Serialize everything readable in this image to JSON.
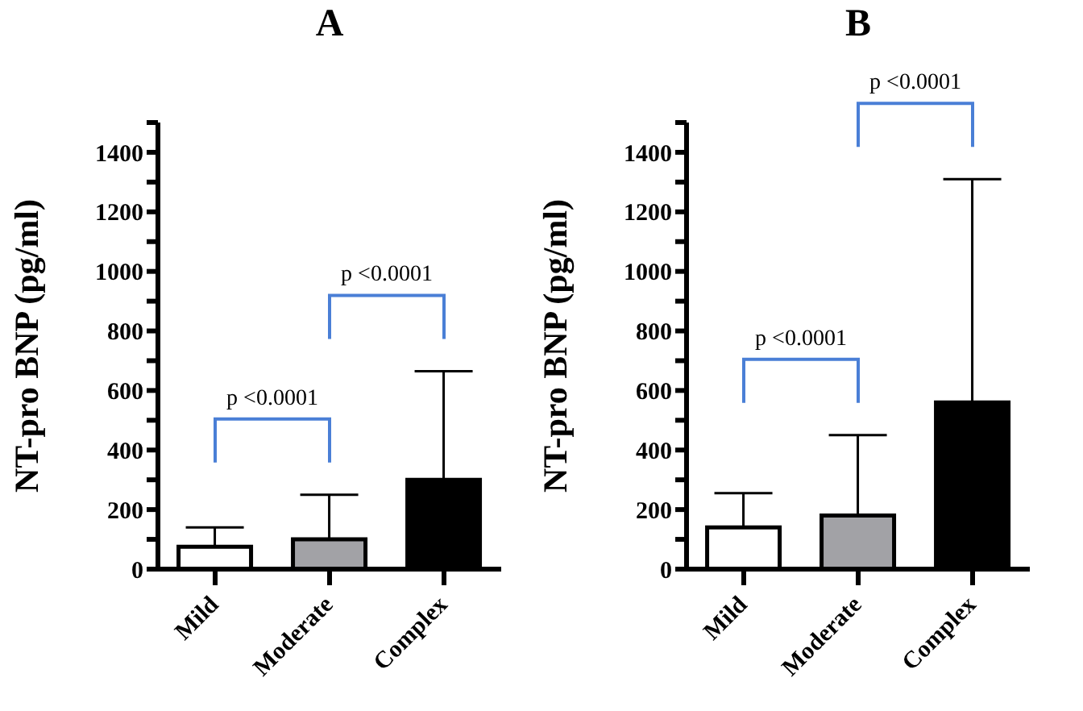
{
  "chart_data": [
    {
      "type": "bar",
      "title": "A",
      "ylabel": "NT-pro BNP (pg/ml)",
      "categories": [
        "Mild",
        "Moderate",
        "Complex"
      ],
      "values": [
        75,
        100,
        300
      ],
      "colors": [
        "#ffffff",
        "#a2a2a6",
        "#000000"
      ],
      "errors": [
        [
          75,
          140
        ],
        [
          100,
          250
        ],
        [
          300,
          665
        ]
      ],
      "ylim": [
        0,
        1500
      ],
      "yticks": [
        0,
        {
          "value": 100,
          "label": null
        },
        200,
        {
          "value": 300,
          "label": null
        },
        400,
        {
          "value": 500,
          "label": null
        },
        600,
        {
          "value": 700,
          "label": null
        },
        800,
        {
          "value": 900,
          "label": null
        },
        1000,
        {
          "value": 1100,
          "label": null
        },
        1200,
        {
          "value": 1300,
          "label": null
        },
        1400,
        {
          "value": 1500,
          "label": null
        }
      ],
      "annotations": [
        "p <0.0001",
        "p <0.0001"
      ],
      "grid": false,
      "legend": false
    },
    {
      "type": "bar",
      "title": "B",
      "ylabel": "NT-pro BNP (pg/ml)",
      "categories": [
        "Mild",
        "Moderate",
        "Complex"
      ],
      "values": [
        140,
        180,
        560
      ],
      "colors": [
        "#ffffff",
        "#a2a2a6",
        "#000000"
      ],
      "errors": [
        [
          140,
          255
        ],
        [
          180,
          450
        ],
        [
          560,
          1310
        ]
      ],
      "ylim": [
        0,
        1500
      ],
      "yticks": [
        0,
        {
          "value": 100,
          "label": null
        },
        200,
        {
          "value": 300,
          "label": null
        },
        400,
        {
          "value": 500,
          "label": null
        },
        600,
        {
          "value": 700,
          "label": null
        },
        800,
        {
          "value": 900,
          "label": null
        },
        1000,
        {
          "value": 1100,
          "label": null
        },
        1200,
        {
          "value": 1300,
          "label": null
        },
        1400,
        {
          "value": 1500,
          "label": null
        }
      ],
      "annotations": [
        "p <0.0001",
        "p <0.0001"
      ],
      "grid": false,
      "legend": false
    }
  ]
}
